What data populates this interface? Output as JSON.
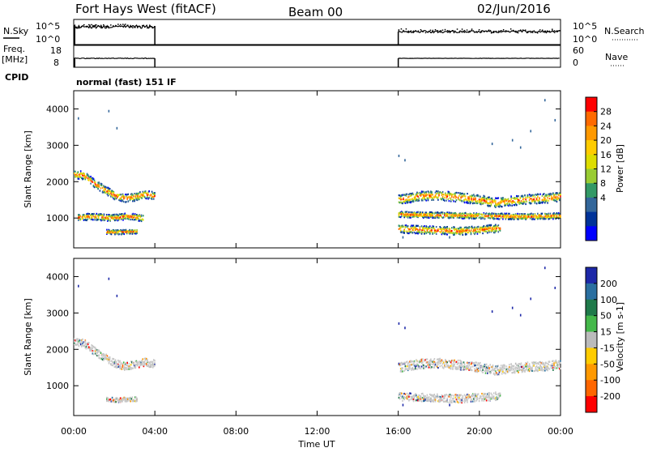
{
  "header": {
    "station": "Fort Hays West (fitACF)",
    "beam": "Beam 00",
    "date": "02/Jun/2016"
  },
  "side_labels": {
    "nsky": "N.Sky",
    "freq": "Freq.",
    "freq_unit": "[MHz]",
    "cpid": "CPID",
    "nsearch": "N.Search",
    "nave": "Nave"
  },
  "cpid_text": "normal (fast) 151 IF",
  "noise_panel": {
    "left_ticks": [
      "10^5",
      "10^0"
    ],
    "right_ticks": [
      "10^5",
      "10^0"
    ]
  },
  "freq_panel": {
    "left_ticks": [
      "18",
      "8"
    ],
    "right_ticks": [
      "60",
      "0"
    ]
  },
  "x_axis": {
    "label": "Time UT",
    "ticks": [
      "00:00",
      "04:00",
      "08:00",
      "12:00",
      "16:00",
      "20:00",
      "00:00"
    ]
  },
  "power_colorbar": {
    "label": "Power [dB]",
    "ticks": [
      "28",
      "24",
      "20",
      "16",
      "12",
      "8",
      "4"
    ],
    "colors": [
      "#ff0000",
      "#ff6a00",
      "#ff9900",
      "#ffcc00",
      "#dddd00",
      "#99cc33",
      "#339966",
      "#33669a",
      "#003399",
      "#0000ff"
    ]
  },
  "velocity_colorbar": {
    "label": "Velocity [m s-1]",
    "ticks": [
      "200",
      "100",
      "50",
      "15",
      "-15",
      "-50",
      "-100",
      "-200"
    ],
    "colors": [
      "#1d28a8",
      "#2a6fa0",
      "#1f7a4a",
      "#44b84a",
      "#bbbbbb",
      "#ffcc00",
      "#ff9900",
      "#ff6600",
      "#ff0000"
    ]
  },
  "chart_data": [
    {
      "type": "heatmap",
      "name": "power",
      "ylabel": "Slant Range [km]",
      "y_ticks": [
        "4000",
        "3000",
        "2000",
        "1000"
      ],
      "xlim": [
        0,
        24
      ],
      "ylim": [
        180,
        4500
      ],
      "bands": [
        {
          "t": [
            0.0,
            0.5,
            1.0,
            1.5,
            2.0,
            2.5,
            3.0,
            3.5,
            4.0
          ],
          "r": [
            2200,
            2170,
            1950,
            1780,
            1620,
            1540,
            1580,
            1650,
            1600
          ],
          "width": 220
        },
        {
          "t": [
            1.6,
            2.1,
            2.6,
            3.1
          ],
          "r": [
            620,
            610,
            620,
            630
          ],
          "width": 120
        },
        {
          "t": [
            0.2,
            1.0,
            1.8,
            2.6,
            3.4
          ],
          "r": [
            1020,
            1040,
            1000,
            1050,
            1000
          ],
          "width": 180
        },
        {
          "t": [
            16.0,
            17.0,
            18.0,
            19.0,
            20.0,
            20.8,
            21.5,
            22.5,
            23.5,
            24.0
          ],
          "r": [
            1500,
            1600,
            1620,
            1570,
            1500,
            1420,
            1470,
            1520,
            1550,
            1600
          ],
          "width": 260
        },
        {
          "t": [
            16.0,
            17.0,
            18.0,
            19.0,
            20.0,
            21.0
          ],
          "r": [
            700,
            680,
            660,
            640,
            680,
            720
          ],
          "width": 220
        },
        {
          "t": [
            16.0,
            18.0,
            20.0,
            22.0,
            24.0
          ],
          "r": [
            1100,
            1080,
            1060,
            1040,
            1060
          ],
          "width": 160
        }
      ]
    },
    {
      "type": "heatmap",
      "name": "velocity",
      "ylabel": "Slant Range [km]",
      "y_ticks": [
        "4000",
        "3000",
        "2000",
        "1000"
      ],
      "xlim": [
        0,
        24
      ],
      "ylim": [
        180,
        4500
      ],
      "bands": [
        {
          "t": [
            0.0,
            0.5,
            1.0,
            1.5,
            2.0,
            2.5,
            3.0,
            3.5,
            4.0
          ],
          "r": [
            2200,
            2170,
            1950,
            1780,
            1620,
            1540,
            1580,
            1650,
            1600
          ],
          "width": 220
        },
        {
          "t": [
            1.6,
            2.1,
            2.6,
            3.1
          ],
          "r": [
            620,
            610,
            620,
            630
          ],
          "width": 120
        },
        {
          "t": [
            16.0,
            17.0,
            18.0,
            19.0,
            20.0,
            20.8,
            21.5,
            22.5,
            23.5,
            24.0
          ],
          "r": [
            1500,
            1600,
            1620,
            1570,
            1500,
            1420,
            1470,
            1520,
            1550,
            1600
          ],
          "width": 260
        },
        {
          "t": [
            16.0,
            17.0,
            18.0,
            19.0,
            20.0,
            21.0
          ],
          "r": [
            700,
            680,
            660,
            640,
            680,
            720
          ],
          "width": 220
        }
      ]
    }
  ]
}
